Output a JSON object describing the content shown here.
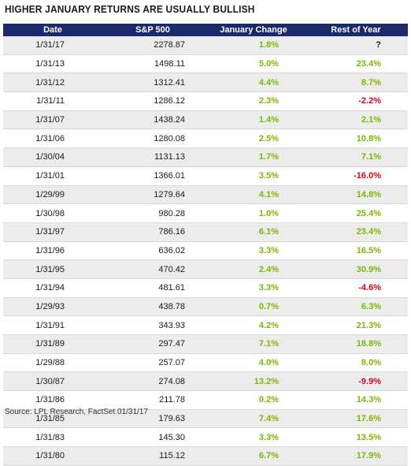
{
  "title": "HIGHER JANUARY RETURNS ARE USUALLY BULLISH",
  "colors": {
    "header_bg": "#1a2a6c",
    "positive": "#7ab800",
    "negative": "#e2001a",
    "neutral": "#1a1a1a"
  },
  "chart_data": {
    "type": "table",
    "columns": [
      "Date",
      "S&P 500",
      "January Change",
      "Rest of Year"
    ],
    "rows": [
      [
        "1/31/17",
        "2278.87",
        "1.8%",
        "?"
      ],
      [
        "1/31/13",
        "1498.11",
        "5.0%",
        "23.4%"
      ],
      [
        "1/31/12",
        "1312.41",
        "4.4%",
        "8.7%"
      ],
      [
        "1/31/11",
        "1286.12",
        "2.3%",
        "-2.2%"
      ],
      [
        "1/31/07",
        "1438.24",
        "1.4%",
        "2.1%"
      ],
      [
        "1/31/06",
        "1280.08",
        "2.5%",
        "10.8%"
      ],
      [
        "1/30/04",
        "1131.13",
        "1.7%",
        "7.1%"
      ],
      [
        "1/31/01",
        "1366.01",
        "3.5%",
        "-16.0%"
      ],
      [
        "1/29/99",
        "1279.64",
        "4.1%",
        "14.8%"
      ],
      [
        "1/30/98",
        "980.28",
        "1.0%",
        "25.4%"
      ],
      [
        "1/31/97",
        "786.16",
        "6.1%",
        "23.4%"
      ],
      [
        "1/31/96",
        "636.02",
        "3.3%",
        "16.5%"
      ],
      [
        "1/31/95",
        "470.42",
        "2.4%",
        "30.9%"
      ],
      [
        "1/31/94",
        "481.61",
        "3.3%",
        "-4.6%"
      ],
      [
        "1/29/93",
        "438.78",
        "0.7%",
        "6.3%"
      ],
      [
        "1/31/91",
        "343.93",
        "4.2%",
        "21.3%"
      ],
      [
        "1/31/89",
        "297.47",
        "7.1%",
        "18.8%"
      ],
      [
        "1/29/88",
        "257.07",
        "4.0%",
        "8.0%"
      ],
      [
        "1/30/87",
        "274.08",
        "13.2%",
        "-9.9%"
      ],
      [
        "1/31/86",
        "211.78",
        "0.2%",
        "14.3%"
      ],
      [
        "1/31/85",
        "179.63",
        "7.4%",
        "17.6%"
      ],
      [
        "1/31/83",
        "145.30",
        "3.3%",
        "13.5%"
      ],
      [
        "1/31/80",
        "115.12",
        "6.7%",
        "17.9%"
      ]
    ]
  },
  "source": "Source: LPL Research, FactSet   01/31/17"
}
